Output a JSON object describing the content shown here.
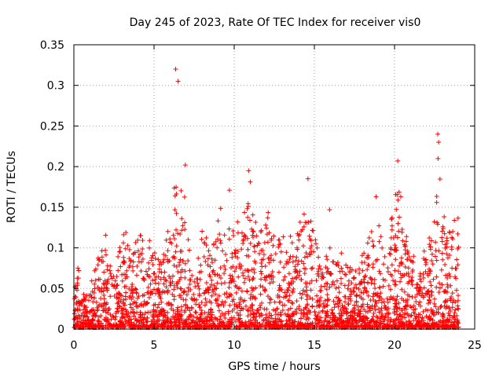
{
  "chart_data": {
    "type": "scatter",
    "title": "Day 245 of 2023, Rate Of TEC Index for receiver vis0",
    "xlabel": "GPS time / hours",
    "ylabel": "ROTI / TECUs",
    "xlim": [
      0,
      25
    ],
    "ylim": [
      0,
      0.35
    ],
    "x_ticks": [
      0,
      5,
      10,
      15,
      20,
      25
    ],
    "y_ticks": [
      0,
      0.05,
      0.1,
      0.15,
      0.2,
      0.25,
      0.3,
      0.35
    ],
    "x_tick_labels": [
      "0",
      "5",
      "10",
      "15",
      "20",
      "25"
    ],
    "y_tick_labels": [
      "0",
      "0.05",
      "0.1",
      "0.15",
      "0.2",
      "0.25",
      "0.3",
      "0.35"
    ],
    "grid": true,
    "marker": "+",
    "color": "#ff0000",
    "envelope": {
      "x": [
        0,
        0.2,
        0.5,
        1,
        1.5,
        2,
        2.5,
        3,
        3.5,
        4,
        4.5,
        5,
        5.5,
        6,
        6.3,
        6.5,
        6.8,
        7,
        7.5,
        8,
        8.5,
        9,
        9.5,
        10,
        10.5,
        11,
        11.5,
        12,
        12.5,
        13,
        13.5,
        14,
        14.5,
        15,
        15.5,
        16,
        16.5,
        17,
        17.5,
        18,
        18.5,
        19,
        19.5,
        20,
        20.3,
        20.6,
        21,
        21.5,
        22,
        22.5,
        22.8,
        23,
        23.5,
        24
      ],
      "y": [
        0.04,
        0.075,
        0.04,
        0.05,
        0.09,
        0.13,
        0.09,
        0.135,
        0.1,
        0.12,
        0.13,
        0.1,
        0.11,
        0.13,
        0.19,
        0.17,
        0.2,
        0.14,
        0.07,
        0.13,
        0.1,
        0.17,
        0.13,
        0.14,
        0.16,
        0.19,
        0.11,
        0.17,
        0.12,
        0.13,
        0.12,
        0.13,
        0.18,
        0.13,
        0.08,
        0.11,
        0.1,
        0.09,
        0.07,
        0.1,
        0.13,
        0.16,
        0.08,
        0.18,
        0.2,
        0.14,
        0.1,
        0.07,
        0.11,
        0.15,
        0.24,
        0.18,
        0.15,
        0.14
      ]
    },
    "outliers": [
      {
        "x": 6.35,
        "y": 0.32
      },
      {
        "x": 6.5,
        "y": 0.305
      },
      {
        "x": 20.2,
        "y": 0.207
      },
      {
        "x": 22.7,
        "y": 0.24
      },
      {
        "x": 22.75,
        "y": 0.23
      },
      {
        "x": 6.95,
        "y": 0.202
      },
      {
        "x": 10.9,
        "y": 0.195
      },
      {
        "x": 14.6,
        "y": 0.185
      },
      {
        "x": 9.7,
        "y": 0.171
      },
      {
        "x": 18.85,
        "y": 0.163
      },
      {
        "x": 15.95,
        "y": 0.147
      },
      {
        "x": 0.25,
        "y": 0.075
      },
      {
        "x": 0.3,
        "y": 0.072
      }
    ],
    "point_count": 3000
  }
}
